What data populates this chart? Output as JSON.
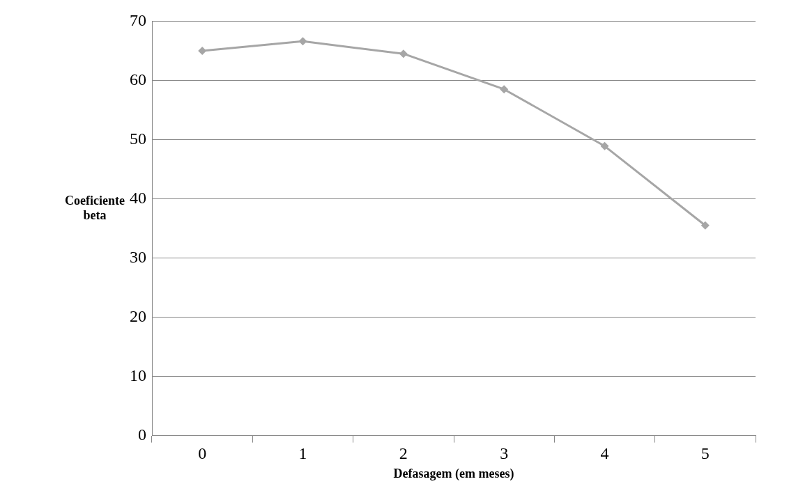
{
  "chart_data": {
    "type": "line",
    "xlabel": "Defasagem (em meses)",
    "ylabel": "Coeficiente beta",
    "categories": [
      "0",
      "1",
      "2",
      "3",
      "4",
      "5"
    ],
    "series": [
      {
        "color": "#a6a6a6",
        "values": [
          65.0,
          66.6,
          64.5,
          58.5,
          48.9,
          35.5
        ]
      }
    ],
    "ylim": [
      0,
      70
    ],
    "yticks": [
      0,
      10,
      20,
      30,
      40,
      50,
      60,
      70
    ],
    "grid": "y",
    "legend": false,
    "marker": "diamond",
    "line_style": "solid"
  }
}
